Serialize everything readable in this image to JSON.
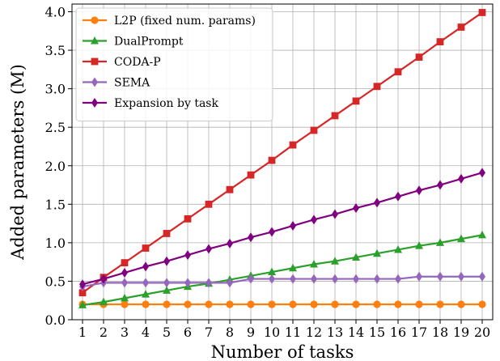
{
  "chart_data": {
    "type": "line",
    "xlabel": "Number of tasks",
    "ylabel": "Added parameters (M)",
    "xlim": [
      0.5,
      20.5
    ],
    "ylim": [
      0.0,
      4.1
    ],
    "xticks": [
      1,
      2,
      3,
      4,
      5,
      6,
      7,
      8,
      9,
      10,
      11,
      12,
      13,
      14,
      15,
      16,
      17,
      18,
      19,
      20
    ],
    "yticks": [
      0.0,
      0.5,
      1.0,
      1.5,
      2.0,
      2.5,
      3.0,
      3.5,
      4.0
    ],
    "ytick_labels": [
      "0.0",
      "0.5",
      "1.0",
      "1.5",
      "2.0",
      "2.5",
      "3.0",
      "3.5",
      "4.0"
    ],
    "grid": true,
    "legend_position": "top-left",
    "x": [
      1,
      2,
      3,
      4,
      5,
      6,
      7,
      8,
      9,
      10,
      11,
      12,
      13,
      14,
      15,
      16,
      17,
      18,
      19,
      20
    ],
    "series": [
      {
        "name": "L2P (fixed num. params)",
        "color": "#ff7f0e",
        "marker": "circle",
        "values": [
          0.2,
          0.2,
          0.2,
          0.2,
          0.2,
          0.2,
          0.2,
          0.2,
          0.2,
          0.2,
          0.2,
          0.2,
          0.2,
          0.2,
          0.2,
          0.2,
          0.2,
          0.2,
          0.2,
          0.2
        ]
      },
      {
        "name": "DualPrompt",
        "color": "#2ca02c",
        "marker": "triangle",
        "values": [
          0.19,
          0.23,
          0.28,
          0.33,
          0.38,
          0.43,
          0.47,
          0.52,
          0.57,
          0.62,
          0.67,
          0.72,
          0.76,
          0.81,
          0.86,
          0.91,
          0.96,
          1.0,
          1.05,
          1.1
        ]
      },
      {
        "name": "CODA-P",
        "color": "#d62728",
        "marker": "square",
        "values": [
          0.35,
          0.55,
          0.74,
          0.93,
          1.12,
          1.31,
          1.5,
          1.69,
          1.88,
          2.07,
          2.27,
          2.46,
          2.65,
          2.84,
          3.03,
          3.22,
          3.41,
          3.61,
          3.8,
          3.99
        ]
      },
      {
        "name": "SEMA",
        "color": "#9467bd",
        "marker": "diamond",
        "values": [
          0.43,
          0.48,
          0.48,
          0.48,
          0.48,
          0.48,
          0.48,
          0.48,
          0.53,
          0.53,
          0.53,
          0.53,
          0.53,
          0.53,
          0.53,
          0.53,
          0.56,
          0.56,
          0.56,
          0.56
        ]
      },
      {
        "name": "Expansion by task",
        "color": "#800080",
        "marker": "diamond",
        "values": [
          0.46,
          0.53,
          0.61,
          0.69,
          0.76,
          0.84,
          0.92,
          0.99,
          1.07,
          1.14,
          1.22,
          1.3,
          1.37,
          1.45,
          1.52,
          1.6,
          1.68,
          1.75,
          1.83,
          1.91
        ]
      }
    ]
  }
}
